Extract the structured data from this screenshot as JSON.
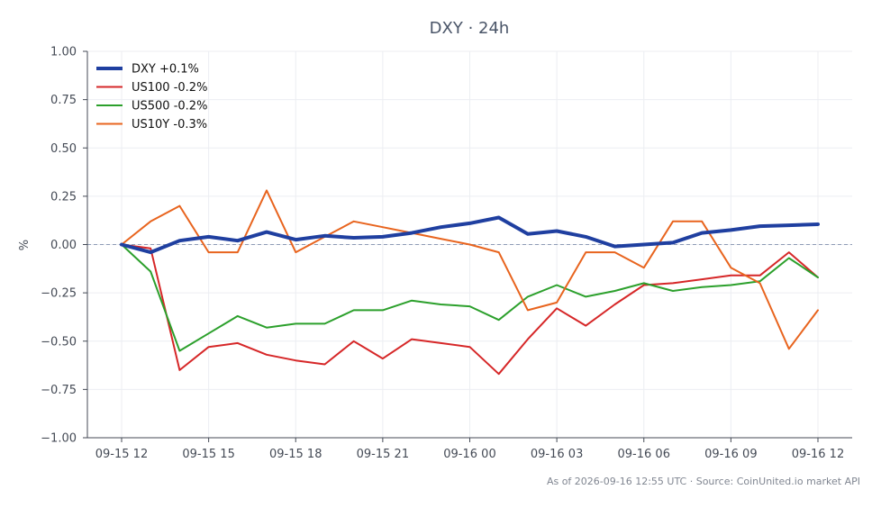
{
  "chart_data": {
    "type": "line",
    "title": "DXY · 24h",
    "xlabel": "",
    "ylabel": "%",
    "ylim": [
      -1.0,
      1.0
    ],
    "yticks": [
      "1.00",
      "0.75",
      "0.50",
      "0.25",
      "0.00",
      "−0.25",
      "−0.50",
      "−0.75",
      "−1.00"
    ],
    "ytick_values": [
      1.0,
      0.75,
      0.5,
      0.25,
      0.0,
      -0.25,
      -0.5,
      -0.75,
      -1.0
    ],
    "xticks": [
      "09-15 12",
      "09-15 15",
      "09-15 18",
      "09-15 21",
      "09-16 00",
      "09-16 03",
      "09-16 06",
      "09-16 09",
      "09-16 12"
    ],
    "xtick_hours": [
      0,
      3,
      6,
      9,
      12,
      15,
      18,
      21,
      24
    ],
    "x_hours": [
      0,
      1,
      2,
      3,
      4,
      5,
      6,
      7,
      8,
      9,
      10,
      11,
      12,
      13,
      14,
      15,
      16,
      17,
      18,
      19,
      20,
      21,
      22,
      23,
      24
    ],
    "grid": true,
    "legend_position": "top-left",
    "zero_reference_line": true,
    "footer": "As of 2026-09-16 12:55 UTC · Source: CoinUnited.io market API",
    "series": [
      {
        "name": "DXY +0.1%",
        "color": "#1f3fa0",
        "emphasis": true,
        "values": [
          0.0,
          -0.04,
          0.02,
          0.04,
          0.02,
          0.065,
          0.025,
          0.045,
          0.035,
          0.04,
          0.06,
          0.09,
          0.11,
          0.14,
          0.055,
          0.07,
          0.04,
          -0.01,
          0.0,
          0.01,
          0.06,
          0.075,
          0.095,
          0.1,
          0.105
        ]
      },
      {
        "name": "US100 -0.2%",
        "color": "#d62728",
        "values": [
          0.0,
          -0.02,
          -0.65,
          -0.53,
          -0.51,
          -0.57,
          -0.6,
          -0.62,
          -0.5,
          -0.59,
          -0.49,
          -0.51,
          -0.53,
          -0.67,
          -0.49,
          -0.33,
          -0.42,
          -0.31,
          -0.21,
          -0.2,
          -0.18,
          -0.16,
          -0.16,
          -0.04,
          -0.17
        ]
      },
      {
        "name": "US500 -0.2%",
        "color": "#2ca02c",
        "values": [
          0.0,
          -0.14,
          -0.55,
          -0.46,
          -0.37,
          -0.43,
          -0.41,
          -0.41,
          -0.34,
          -0.34,
          -0.29,
          -0.31,
          -0.32,
          -0.39,
          -0.27,
          -0.21,
          -0.27,
          -0.24,
          -0.2,
          -0.24,
          -0.22,
          -0.21,
          -0.19,
          -0.07,
          -0.17
        ]
      },
      {
        "name": "US10Y -0.3%",
        "color": "#e8641e",
        "values": [
          0.0,
          0.12,
          0.2,
          -0.04,
          -0.04,
          0.28,
          -0.04,
          0.04,
          0.12,
          0.09,
          0.06,
          0.03,
          0.0,
          -0.04,
          -0.34,
          -0.3,
          -0.04,
          -0.04,
          -0.12,
          0.12,
          0.12,
          -0.12,
          -0.2,
          -0.54,
          -0.34
        ]
      }
    ]
  }
}
